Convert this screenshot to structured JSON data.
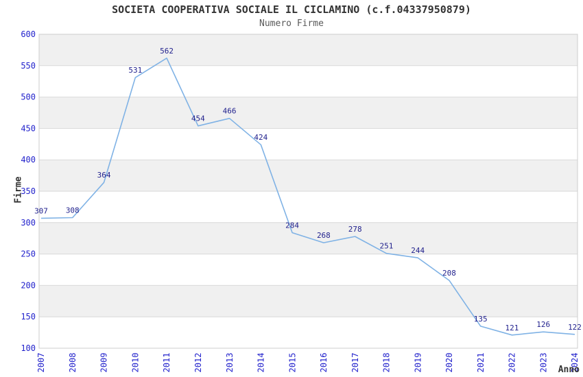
{
  "title": "SOCIETA COOPERATIVA SOCIALE IL CICLAMINO (c.f.04337950879)",
  "subtitle": "Numero Firme",
  "chart_data": {
    "type": "line",
    "x": [
      2007,
      2008,
      2009,
      2010,
      2011,
      2012,
      2013,
      2014,
      2015,
      2016,
      2017,
      2018,
      2019,
      2020,
      2021,
      2022,
      2023,
      2024
    ],
    "values": [
      307,
      308,
      364,
      531,
      562,
      454,
      466,
      424,
      284,
      268,
      278,
      251,
      244,
      208,
      135,
      121,
      126,
      122
    ],
    "title": "SOCIETA COOPERATIVA SOCIALE IL CICLAMINO (c.f.04337950879)",
    "subtitle": "Numero Firme",
    "xlabel": "Anno",
    "ylabel": "Firme",
    "ylim": [
      100,
      600
    ],
    "ytick_interval": 50,
    "grid": "horizontal gridlines with alternating gray bands every 50 units",
    "legend": "none",
    "data_labels_shown": true,
    "colors": {
      "line": "#7FB2E5",
      "data_label": "#1F1F8C",
      "tick_label": "#2222CC",
      "band_gray": "#F0F0F0",
      "band_white": "#FFFFFF",
      "grid_line": "#D9D9D9",
      "plot_border": "#CCCCCC",
      "title": "#333333",
      "subtitle": "#595959",
      "axis_title": "#333333"
    }
  }
}
